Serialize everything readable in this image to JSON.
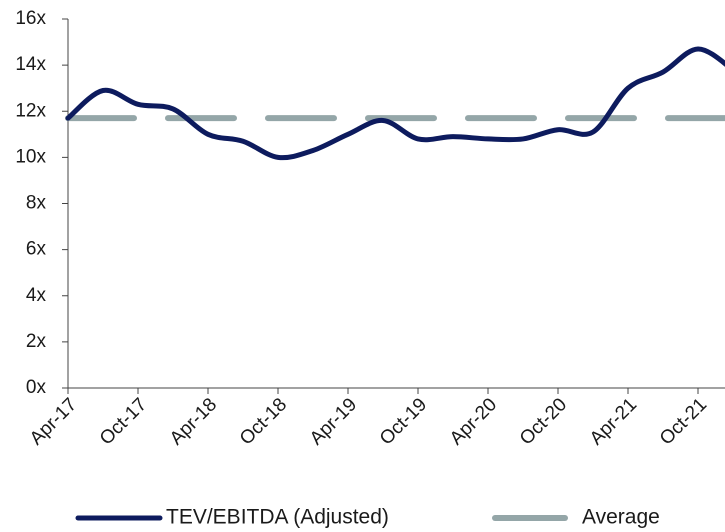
{
  "chart_data": {
    "type": "line",
    "categories": [
      "Apr-17",
      null,
      "Oct-17",
      null,
      "Apr-18",
      null,
      "Oct-18",
      null,
      "Apr-19",
      null,
      "Oct-19",
      null,
      "Apr-20",
      null,
      "Oct-20",
      null,
      "Apr-21",
      null,
      "Oct-21",
      null
    ],
    "series": [
      {
        "name": "TEV/EBITDA (Adjusted)",
        "color": "#0d1b5e",
        "style": "solid",
        "values": [
          11.7,
          12.9,
          12.3,
          12.1,
          11.0,
          10.7,
          10.0,
          10.3,
          11.0,
          11.6,
          10.8,
          10.9,
          10.8,
          10.8,
          11.2,
          11.1,
          13.0,
          13.7,
          14.7,
          13.8
        ]
      },
      {
        "name": "Average",
        "color": "#94a6a8",
        "style": "dashed",
        "values": [
          11.7,
          11.7,
          11.7,
          11.7,
          11.7,
          11.7,
          11.7,
          11.7,
          11.7,
          11.7,
          11.7,
          11.7,
          11.7,
          11.7,
          11.7,
          11.7,
          11.7,
          11.7,
          11.7,
          11.7
        ]
      }
    ],
    "ylim": [
      0,
      16
    ],
    "yticks": [
      {
        "value": 0,
        "label": "0x"
      },
      {
        "value": 2,
        "label": "2x"
      },
      {
        "value": 4,
        "label": "4x"
      },
      {
        "value": 6,
        "label": "6x"
      },
      {
        "value": 8,
        "label": "8x"
      },
      {
        "value": 10,
        "label": "10x"
      },
      {
        "value": 12,
        "label": "12x"
      },
      {
        "value": 14,
        "label": "14x"
      },
      {
        "value": 16,
        "label": "16x"
      }
    ],
    "legend": "bottom"
  }
}
